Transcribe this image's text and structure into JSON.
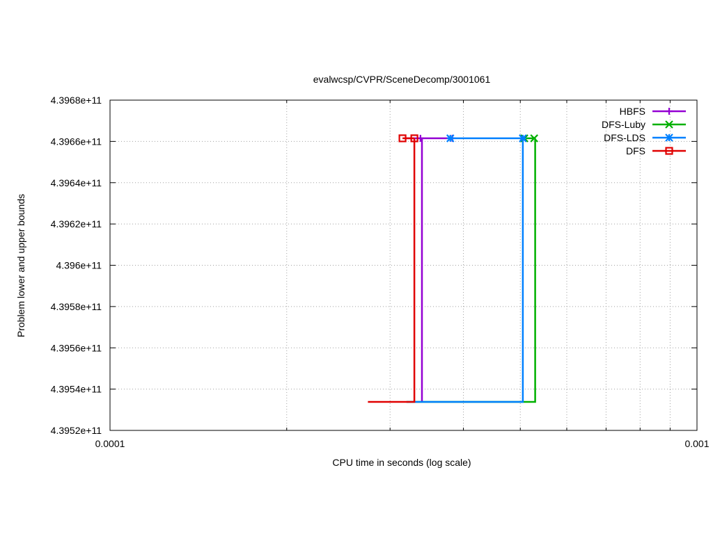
{
  "chart_data": {
    "type": "line",
    "title": "evalwcsp/CVPR/SceneDecomp/3001061",
    "xlabel": "CPU time in seconds (log scale)",
    "ylabel": "Problem lower and upper bounds",
    "x_scale": "log",
    "xlim": [
      0.0001,
      0.001
    ],
    "ylim": [
      439520000000,
      439680000000
    ],
    "x_ticks": [
      {
        "value": 0.0001,
        "label": "0.0001"
      },
      {
        "value": 0.001,
        "label": "0.001"
      }
    ],
    "y_ticks": [
      {
        "value": 439520000000,
        "label": "4.3952e+11"
      },
      {
        "value": 439540000000,
        "label": "4.3954e+11"
      },
      {
        "value": 439560000000,
        "label": "4.3956e+11"
      },
      {
        "value": 439580000000,
        "label": "4.3958e+11"
      },
      {
        "value": 439600000000,
        "label": "4.396e+11"
      },
      {
        "value": 439620000000,
        "label": "4.3962e+11"
      },
      {
        "value": 439640000000,
        "label": "4.3964e+11"
      },
      {
        "value": 439660000000,
        "label": "4.3966e+11"
      },
      {
        "value": 439680000000,
        "label": "4.3968e+11"
      }
    ],
    "grid": true,
    "legend_position": "top-right",
    "series": [
      {
        "name": "HBFS",
        "color": "#9400d3",
        "marker": "plus",
        "lower": [
          [
            0.00034,
            439533800000
          ],
          [
            0.00034,
            439661500000
          ]
        ],
        "upper": [
          [
            0.00032,
            439661500000
          ],
          [
            0.000385,
            439661500000
          ]
        ],
        "markers": [
          [
            0.000338,
            439661500000
          ],
          [
            0.000383,
            439661500000
          ]
        ]
      },
      {
        "name": "DFS-Luby",
        "color": "#00b000",
        "marker": "x",
        "lower": [
          [
            0.00032,
            439533800000
          ],
          [
            0.00053,
            439533800000
          ],
          [
            0.00053,
            439661500000
          ]
        ],
        "upper": [
          [
            0.00051,
            439661500000
          ],
          [
            0.00053,
            439661500000
          ]
        ],
        "markers": [
          [
            0.000508,
            439661500000
          ],
          [
            0.000528,
            439661500000
          ]
        ]
      },
      {
        "name": "DFS-LDS",
        "color": "#0080ff",
        "marker": "star",
        "lower": [
          [
            0.00032,
            439533800000
          ],
          [
            0.000505,
            439533800000
          ],
          [
            0.000505,
            439661500000
          ]
        ],
        "upper": [
          [
            0.00038,
            439661500000
          ],
          [
            0.000505,
            439661500000
          ]
        ],
        "markers": [
          [
            0.00038,
            439661500000
          ],
          [
            0.000505,
            439661500000
          ]
        ]
      },
      {
        "name": "DFS",
        "color": "#e00000",
        "marker": "square",
        "lower": [
          [
            0.000275,
            439533800000
          ],
          [
            0.00033,
            439533800000
          ],
          [
            0.00033,
            439661500000
          ]
        ],
        "upper": [
          [
            0.000315,
            439661500000
          ],
          [
            0.00033,
            439661500000
          ]
        ],
        "markers": [
          [
            0.000315,
            439661500000
          ],
          [
            0.00033,
            439661500000
          ]
        ]
      }
    ]
  }
}
